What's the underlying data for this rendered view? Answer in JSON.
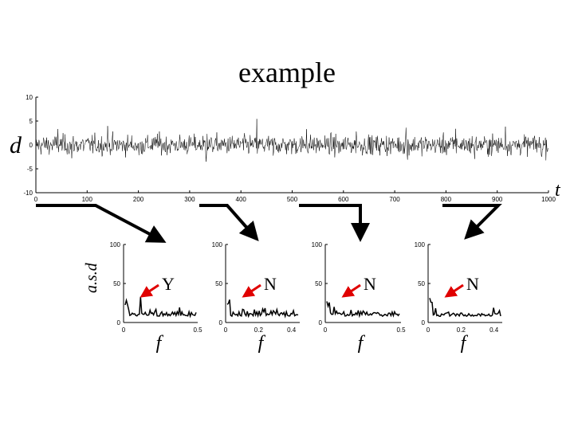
{
  "title": "example",
  "labels": {
    "d": "d",
    "t": "t",
    "asd": "a.s.d",
    "f": "f"
  },
  "colors": {
    "arrow_red": "#e00000",
    "line": "#000000"
  },
  "chart_data": [
    {
      "type": "line",
      "name": "time-series",
      "xlim": [
        0,
        1000
      ],
      "ylim": [
        -10,
        10
      ],
      "xticks": [
        0,
        100,
        200,
        300,
        400,
        500,
        600,
        700,
        800,
        900,
        1000
      ],
      "yticks": [
        10,
        5,
        0,
        -5,
        -10
      ],
      "xlabel": "t",
      "ylabel": "d",
      "segments": [
        [
          0,
          250
        ],
        [
          250,
          500
        ],
        [
          500,
          750
        ],
        [
          750,
          1000
        ]
      ],
      "n_points": 1000
    },
    {
      "type": "line",
      "name": "spectrum-1",
      "xlim": [
        0,
        0.5
      ],
      "ylim": [
        0,
        100
      ],
      "xticks": [
        "0",
        "0.5"
      ],
      "yticks": [
        "100",
        "50",
        "0"
      ],
      "xlabel": "f",
      "ylabel": "a.s.d",
      "annotation": "Y",
      "peak_x": 0.09,
      "peak_y": 33
    },
    {
      "type": "line",
      "name": "spectrum-2",
      "xlim": [
        0,
        0.45
      ],
      "ylim": [
        0,
        100
      ],
      "xticks": [
        "0",
        "0.2",
        "0.4"
      ],
      "yticks": [
        "100",
        "50",
        "0"
      ],
      "xlabel": "f",
      "annotation": "N"
    },
    {
      "type": "line",
      "name": "spectrum-3",
      "xlim": [
        0,
        0.5
      ],
      "ylim": [
        0,
        100
      ],
      "xticks": [
        "0",
        "0.5"
      ],
      "yticks": [
        "100",
        "50",
        "0"
      ],
      "xlabel": "f",
      "annotation": "N"
    },
    {
      "type": "line",
      "name": "spectrum-4",
      "xlim": [
        0,
        0.45
      ],
      "ylim": [
        0,
        100
      ],
      "xticks": [
        "0",
        "0.2",
        "0.4"
      ],
      "yticks": [
        "100",
        "50",
        "0"
      ],
      "xlabel": "f",
      "annotation": "N"
    }
  ]
}
